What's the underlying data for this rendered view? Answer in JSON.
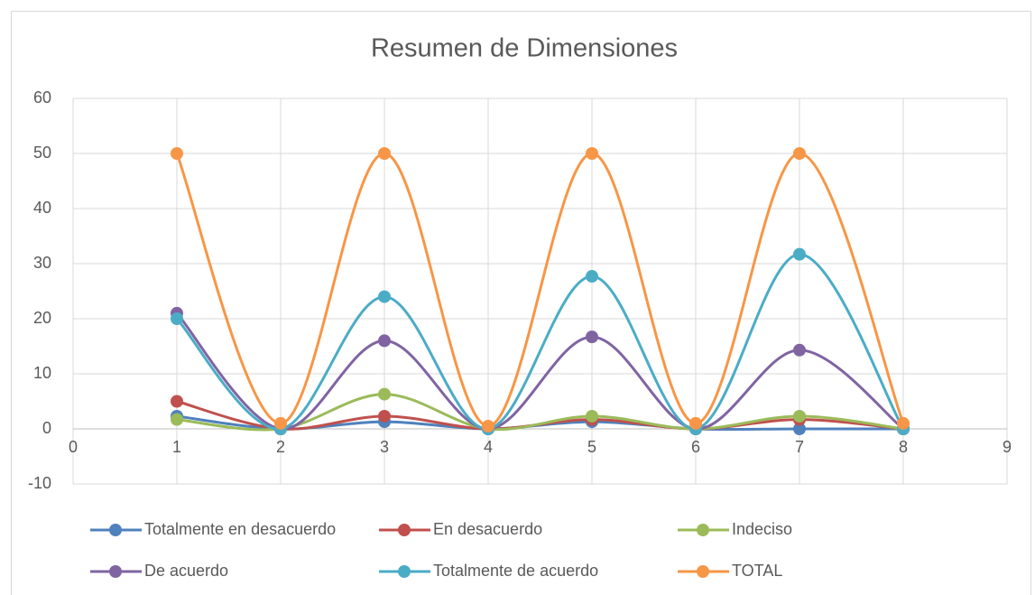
{
  "chart_data": {
    "type": "line",
    "smooth": true,
    "title": "Resumen de Dimensiones",
    "x": [
      1,
      2,
      3,
      4,
      5,
      6,
      7,
      8
    ],
    "series": [
      {
        "name": "Totalmente en desacuerdo",
        "color": "#4f81bd",
        "values": [
          2.3,
          0,
          1.3,
          0,
          1.3,
          0,
          0,
          0
        ]
      },
      {
        "name": "En desacuerdo",
        "color": "#c0504d",
        "values": [
          5,
          0,
          2.3,
          0,
          1.7,
          0,
          1.7,
          0
        ]
      },
      {
        "name": "Indeciso",
        "color": "#9bbb59",
        "values": [
          1.7,
          0,
          6.3,
          0,
          2.3,
          0,
          2.3,
          0
        ]
      },
      {
        "name": "De acuerdo",
        "color": "#8064a2",
        "values": [
          21,
          0,
          16,
          0,
          16.7,
          0,
          14.3,
          0
        ]
      },
      {
        "name": "Totalmente de acuerdo",
        "color": "#4bacc6",
        "values": [
          20,
          0,
          24,
          0,
          27.7,
          0,
          31.7,
          0
        ]
      },
      {
        "name": "TOTAL",
        "color": "#f79646",
        "values": [
          50,
          1,
          50,
          0.5,
          50,
          1,
          50,
          1
        ]
      }
    ],
    "xlim": [
      0,
      9
    ],
    "xticks": [
      0,
      1,
      2,
      3,
      4,
      5,
      6,
      7,
      8,
      9
    ],
    "ylim": [
      -10,
      60
    ],
    "yticks": [
      -10,
      0,
      10,
      20,
      30,
      40,
      50,
      60
    ],
    "grid": true,
    "legend": "bottom"
  }
}
